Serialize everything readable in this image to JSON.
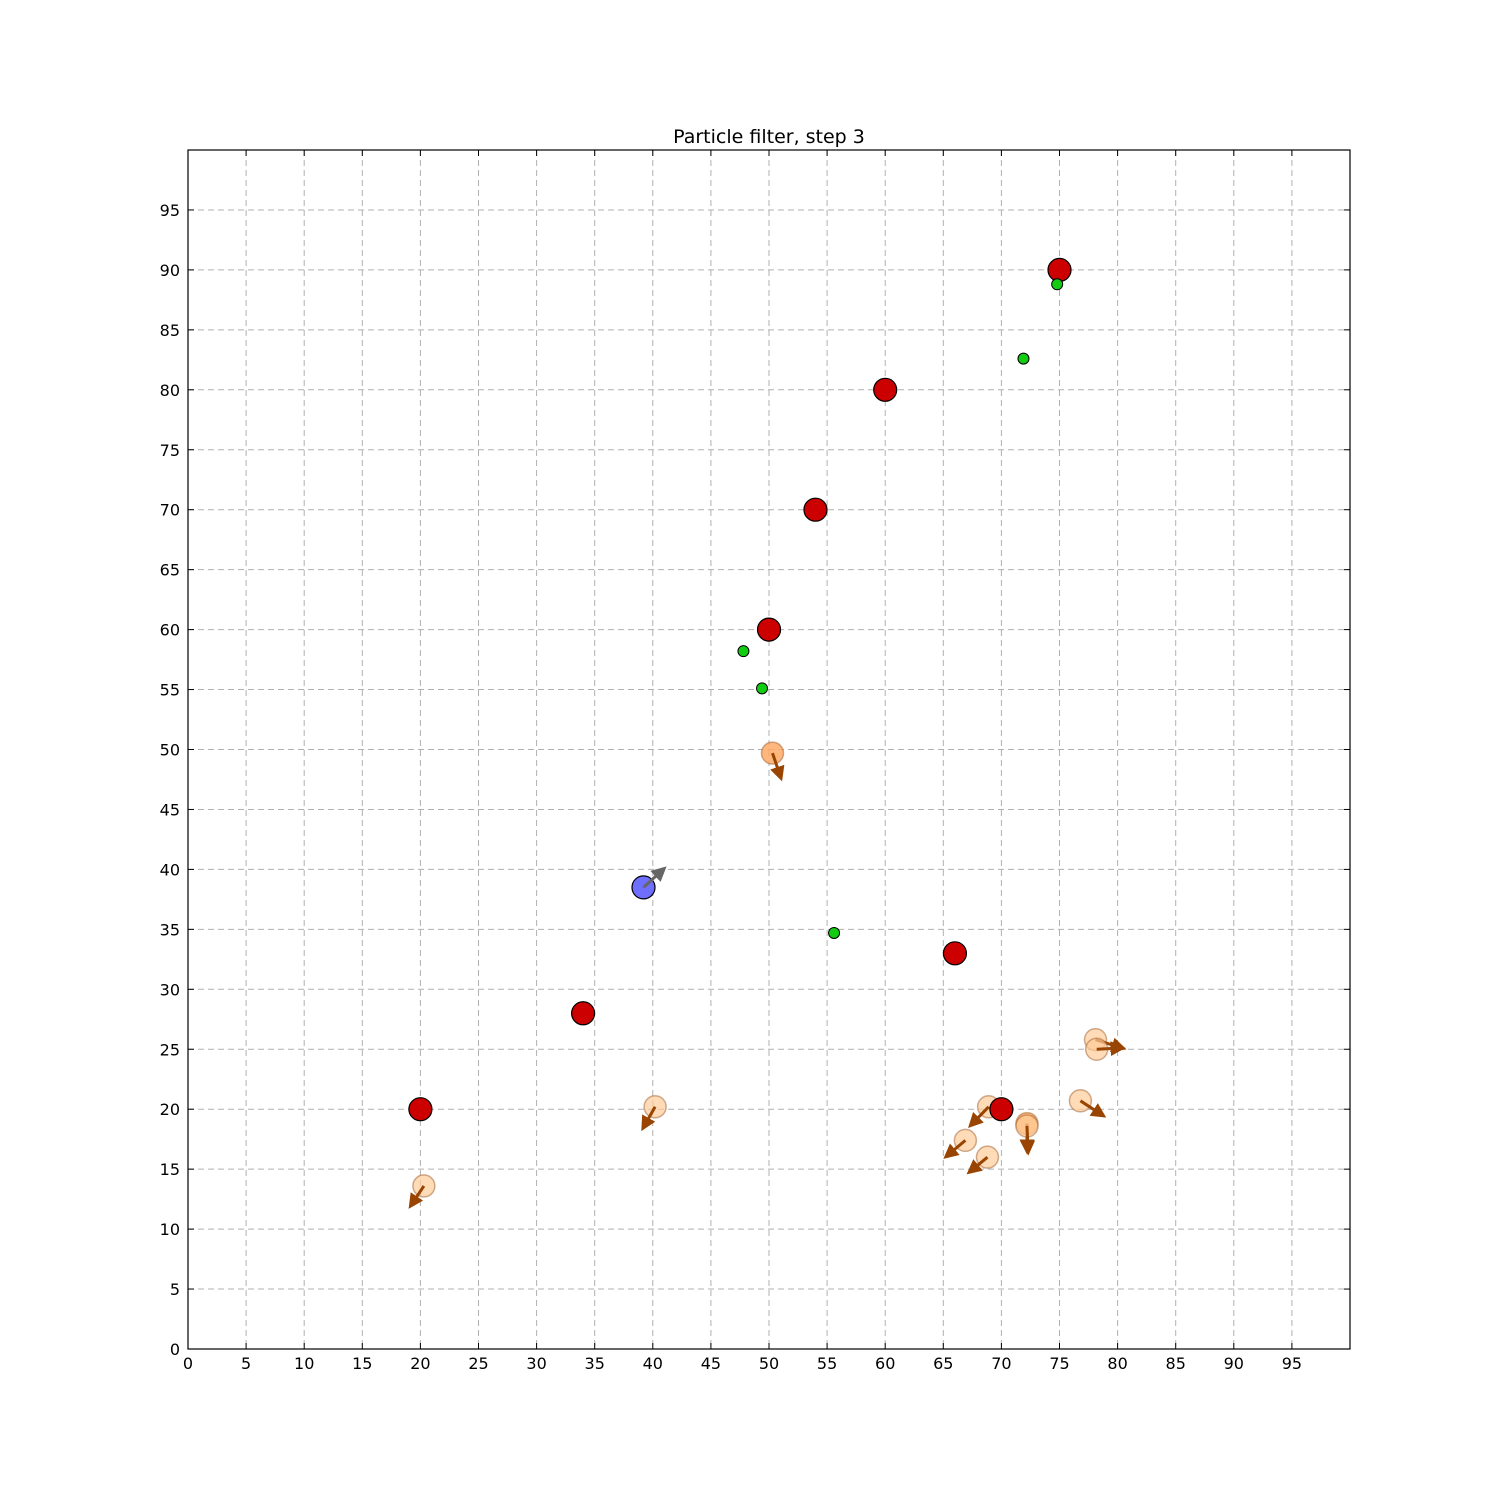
{
  "chart_data": {
    "type": "scatter",
    "title": "Particle filter, step 3",
    "xlabel": "",
    "ylabel": "",
    "xlim": [
      0,
      100
    ],
    "ylim": [
      0,
      100
    ],
    "xticks": [
      0,
      5,
      10,
      15,
      20,
      25,
      30,
      35,
      40,
      45,
      50,
      55,
      60,
      65,
      70,
      75,
      80,
      85,
      90,
      95
    ],
    "yticks": [
      0,
      5,
      10,
      15,
      20,
      25,
      30,
      35,
      40,
      45,
      50,
      55,
      60,
      65,
      70,
      75,
      80,
      85,
      90,
      95
    ],
    "grid": true,
    "colors": {
      "landmark": "#cc0000",
      "measurement": "#11cc11",
      "robot": "#6666ff",
      "robot_arrow": "#666666",
      "particle_fill": "#ffcc99",
      "particle_best_fill": "#ffaa66",
      "particle_arrow": "#994400",
      "grid": "#b0b0b0"
    },
    "landmarks": [
      {
        "x": 20,
        "y": 20
      },
      {
        "x": 34,
        "y": 28
      },
      {
        "x": 50,
        "y": 60
      },
      {
        "x": 54,
        "y": 70
      },
      {
        "x": 60,
        "y": 80
      },
      {
        "x": 66,
        "y": 33
      },
      {
        "x": 70,
        "y": 20
      },
      {
        "x": 75,
        "y": 90
      }
    ],
    "measurements": [
      {
        "x": 47.8,
        "y": 58.2
      },
      {
        "x": 49.4,
        "y": 55.1
      },
      {
        "x": 55.6,
        "y": 34.7
      },
      {
        "x": 71.9,
        "y": 82.6
      },
      {
        "x": 74.8,
        "y": 88.8
      }
    ],
    "robot": {
      "x": 39.2,
      "y": 38.5,
      "dx": 1.7,
      "dy": 1.5
    },
    "particles": [
      {
        "x": 50.3,
        "y": 49.7,
        "dx": 0.7,
        "dy": -2.0,
        "best": true
      },
      {
        "x": 72.2,
        "y": 18.8,
        "dx": 0.0,
        "dy": -2.2,
        "best": true
      },
      {
        "x": 72.2,
        "y": 18.6,
        "dx": 0.1,
        "dy": -2.1,
        "best": false
      },
      {
        "x": 78.1,
        "y": 25.8,
        "dx": 2.3,
        "dy": -0.7,
        "best": false
      },
      {
        "x": 78.2,
        "y": 25.0,
        "dx": 2.1,
        "dy": 0.1,
        "best": false
      },
      {
        "x": 76.8,
        "y": 20.7,
        "dx": 1.9,
        "dy": -1.2,
        "best": false
      },
      {
        "x": 68.9,
        "y": 20.2,
        "dx": -1.5,
        "dy": -1.5,
        "best": false
      },
      {
        "x": 66.9,
        "y": 17.4,
        "dx": -1.6,
        "dy": -1.3,
        "best": false
      },
      {
        "x": 68.8,
        "y": 16.0,
        "dx": -1.5,
        "dy": -1.2,
        "best": false
      },
      {
        "x": 40.2,
        "y": 20.2,
        "dx": -1.0,
        "dy": -1.7,
        "best": false
      },
      {
        "x": 20.3,
        "y": 13.6,
        "dx": -1.1,
        "dy": -1.6,
        "best": false
      }
    ]
  }
}
